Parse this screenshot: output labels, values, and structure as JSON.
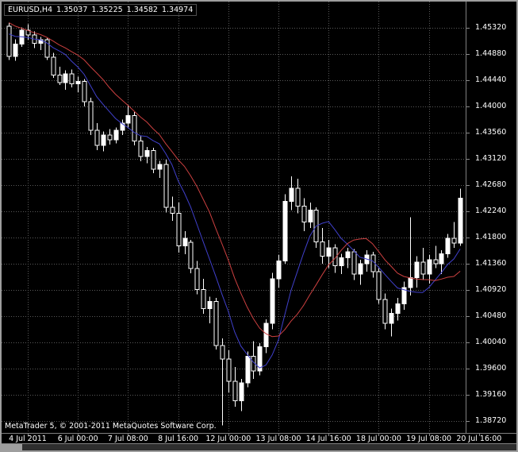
{
  "window": {
    "quote_line": {
      "symbol_period": "EURUSD,H4",
      "open": "1.35037",
      "high": "1.35225",
      "low": "1.34582",
      "close": "1.34974"
    },
    "credit": "MetaTrader 5, © 2001-2011 MetaQuotes Software Corp."
  },
  "chart_data": {
    "type": "candlestick",
    "title": "EURUSD,H4",
    "symbol": "EURUSD",
    "timeframe": "H4",
    "ylim": [
      1.3852,
      1.4576
    ],
    "grid": true,
    "y_ticks": [
      "1.45320",
      "1.44880",
      "1.44440",
      "1.44000",
      "1.43560",
      "1.43120",
      "1.42680",
      "1.42240",
      "1.41800",
      "1.41360",
      "1.40920",
      "1.40480",
      "1.40040",
      "1.39600",
      "1.39160",
      "1.38720"
    ],
    "x_ticks": [
      {
        "bar": 3,
        "label": "4 Jul 2011"
      },
      {
        "bar": 11,
        "label": "6 Jul 00:00"
      },
      {
        "bar": 19,
        "label": "7 Jul 08:00"
      },
      {
        "bar": 27,
        "label": "8 Jul 16:00"
      },
      {
        "bar": 35,
        "label": "12 Jul 00:00"
      },
      {
        "bar": 43,
        "label": "13 Jul 08:00"
      },
      {
        "bar": 51,
        "label": "14 Jul 16:00"
      },
      {
        "bar": 59,
        "label": "18 Jul 00:00"
      },
      {
        "bar": 67,
        "label": "19 Jul 08:00"
      },
      {
        "bar": 75,
        "label": "20 Jul 16:00"
      }
    ],
    "candles_ohlc": [
      [
        1.4535,
        1.4541,
        1.4478,
        1.4484
      ],
      [
        1.4484,
        1.4513,
        1.4477,
        1.4505
      ],
      [
        1.4505,
        1.4533,
        1.45,
        1.4528
      ],
      [
        1.4528,
        1.4538,
        1.4512,
        1.452
      ],
      [
        1.452,
        1.4526,
        1.4498,
        1.4506
      ],
      [
        1.4506,
        1.4517,
        1.4495,
        1.4512
      ],
      [
        1.4512,
        1.4515,
        1.4478,
        1.4483
      ],
      [
        1.4483,
        1.449,
        1.4448,
        1.4453
      ],
      [
        1.4453,
        1.4467,
        1.4436,
        1.444
      ],
      [
        1.444,
        1.4461,
        1.4428,
        1.4455
      ],
      [
        1.4455,
        1.4462,
        1.4432,
        1.4438
      ],
      [
        1.4438,
        1.445,
        1.4424,
        1.4442
      ],
      [
        1.4442,
        1.4446,
        1.44,
        1.4408
      ],
      [
        1.4408,
        1.4415,
        1.4352,
        1.436
      ],
      [
        1.436,
        1.4372,
        1.4327,
        1.4335
      ],
      [
        1.4335,
        1.4358,
        1.4325,
        1.4352
      ],
      [
        1.4352,
        1.4362,
        1.4336,
        1.4344
      ],
      [
        1.4344,
        1.4365,
        1.4338,
        1.436
      ],
      [
        1.436,
        1.4378,
        1.4352,
        1.4372
      ],
      [
        1.4372,
        1.4402,
        1.4365,
        1.4385
      ],
      [
        1.4385,
        1.4391,
        1.4335,
        1.4342
      ],
      [
        1.4342,
        1.435,
        1.4308,
        1.4316
      ],
      [
        1.4316,
        1.4332,
        1.4305,
        1.4326
      ],
      [
        1.4326,
        1.4331,
        1.4288,
        1.4295
      ],
      [
        1.4295,
        1.4309,
        1.428,
        1.4303
      ],
      [
        1.4303,
        1.4311,
        1.4222,
        1.4231
      ],
      [
        1.4231,
        1.4249,
        1.4208,
        1.4221
      ],
      [
        1.4221,
        1.4239,
        1.4155,
        1.4166
      ],
      [
        1.4166,
        1.4191,
        1.4152,
        1.4179
      ],
      [
        1.4172,
        1.4176,
        1.412,
        1.4128
      ],
      [
        1.4128,
        1.4141,
        1.4085,
        1.4093
      ],
      [
        1.4093,
        1.4111,
        1.4052,
        1.4061
      ],
      [
        1.4061,
        1.4081,
        1.4036,
        1.4073
      ],
      [
        1.4073,
        1.4079,
        1.3992,
        1.3999
      ],
      [
        1.3999,
        1.4011,
        1.3865,
        1.3976
      ],
      [
        1.3976,
        1.3991,
        1.392,
        1.3939
      ],
      [
        1.3939,
        1.3963,
        1.3896,
        1.3906
      ],
      [
        1.3906,
        1.3943,
        1.3889,
        1.3936
      ],
      [
        1.3936,
        1.3989,
        1.3929,
        1.3981
      ],
      [
        1.3981,
        1.4006,
        1.3943,
        1.3956
      ],
      [
        1.3956,
        1.4003,
        1.3949,
        1.3997
      ],
      [
        1.3997,
        1.4043,
        1.3986,
        1.4036
      ],
      [
        1.4036,
        1.4121,
        1.4026,
        1.4111
      ],
      [
        1.4111,
        1.4151,
        1.4096,
        1.4141
      ],
      [
        1.4141,
        1.4253,
        1.4136,
        1.4241
      ],
      [
        1.4241,
        1.4283,
        1.4226,
        1.4263
      ],
      [
        1.4263,
        1.4279,
        1.4221,
        1.4233
      ],
      [
        1.4233,
        1.4246,
        1.4191,
        1.4206
      ],
      [
        1.4206,
        1.4239,
        1.4196,
        1.4226
      ],
      [
        1.4226,
        1.4231,
        1.4163,
        1.4173
      ],
      [
        1.4173,
        1.4196,
        1.4136,
        1.4149
      ],
      [
        1.4149,
        1.4176,
        1.4129,
        1.4163
      ],
      [
        1.4163,
        1.4169,
        1.4121,
        1.4133
      ],
      [
        1.4133,
        1.4153,
        1.4119,
        1.4146
      ],
      [
        1.4146,
        1.4163,
        1.4129,
        1.4156
      ],
      [
        1.4156,
        1.4161,
        1.4109,
        1.4119
      ],
      [
        1.4119,
        1.4143,
        1.4101,
        1.4136
      ],
      [
        1.4136,
        1.4159,
        1.4123,
        1.4151
      ],
      [
        1.4151,
        1.4156,
        1.4113,
        1.4123
      ],
      [
        1.4123,
        1.4129,
        1.4069,
        1.4076
      ],
      [
        1.4076,
        1.4086,
        1.4026,
        1.4036
      ],
      [
        1.4036,
        1.4061,
        1.4014,
        1.4053
      ],
      [
        1.4053,
        1.4079,
        1.4041,
        1.4069
      ],
      [
        1.4069,
        1.4106,
        1.4059,
        1.4096
      ],
      [
        1.4096,
        1.4214,
        1.4083,
        1.4113
      ],
      [
        1.4113,
        1.4149,
        1.4096,
        1.4139
      ],
      [
        1.4139,
        1.4163,
        1.4109,
        1.4119
      ],
      [
        1.4119,
        1.4151,
        1.4103,
        1.4143
      ],
      [
        1.4143,
        1.4166,
        1.4129,
        1.4136
      ],
      [
        1.4136,
        1.4159,
        1.4119,
        1.4153
      ],
      [
        1.4153,
        1.4186,
        1.4146,
        1.4179
      ],
      [
        1.4179,
        1.4206,
        1.4163,
        1.4171
      ],
      [
        1.4171,
        1.4262,
        1.4166,
        1.4246
      ]
    ],
    "ma_prehistory": [
      1.459,
      1.4585,
      1.4578,
      1.457,
      1.4561,
      1.4553,
      1.4546,
      1.4539,
      1.4533,
      1.4529,
      1.4526,
      1.4523,
      1.4521,
      1.4519
    ],
    "indicators": [
      {
        "name": "fast-ma",
        "type": "sma",
        "period": 8,
        "color": "#4040cc"
      },
      {
        "name": "slow-ma",
        "type": "sma",
        "period": 14,
        "color": "#cc4040"
      }
    ],
    "colors": {
      "background": "#000000",
      "grid": "#5a5a5a",
      "bull_body": "#ffffff",
      "bear_body": "#000000",
      "candle_outline": "#ffffff",
      "axis_text": "#ffffff",
      "frame": "#9e9e9e"
    }
  }
}
